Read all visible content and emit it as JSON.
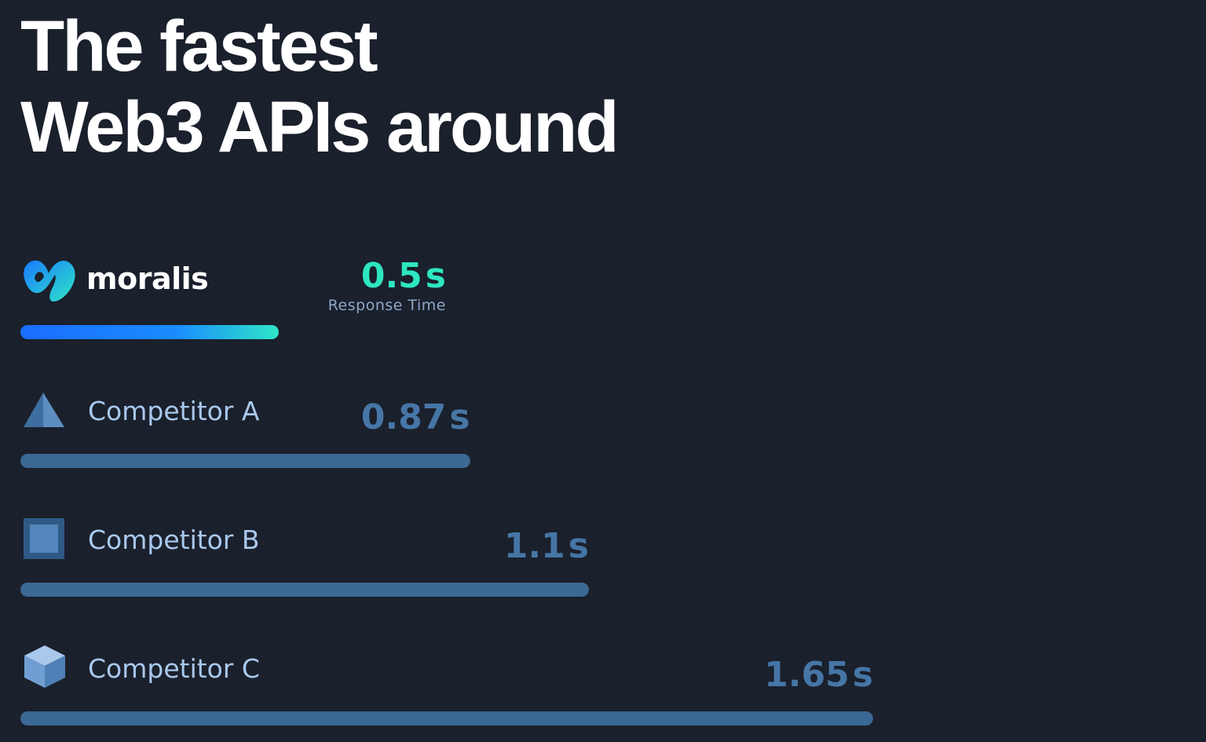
{
  "headline": {
    "line1": "The fastest",
    "line2": "Web3 APIs around"
  },
  "colors": {
    "background": "#1a202c",
    "accent": "#2ee6c0",
    "bar_gradient_start": "#1a6dff",
    "competitor_bar": "#3b6894",
    "competitor_value": "#4676a6"
  },
  "brand": {
    "name": "moralis",
    "logo_icon": "moralis-heart-logo"
  },
  "chart_data": {
    "type": "bar",
    "orientation": "horizontal",
    "title": "The fastest Web3 APIs around",
    "categories": [
      "moralis",
      "Competitor A",
      "Competitor B",
      "Competitor C"
    ],
    "values": [
      0.5,
      0.87,
      1.1,
      1.65
    ],
    "value_labels": [
      "0.5",
      "0.87",
      "1.1",
      "1.65"
    ],
    "unit": "s",
    "value_caption": "Response Time",
    "icons": [
      "moralis-logo-icon",
      "triangle-icon",
      "square-icon",
      "cube-icon"
    ],
    "grid": false,
    "legend": "none"
  }
}
